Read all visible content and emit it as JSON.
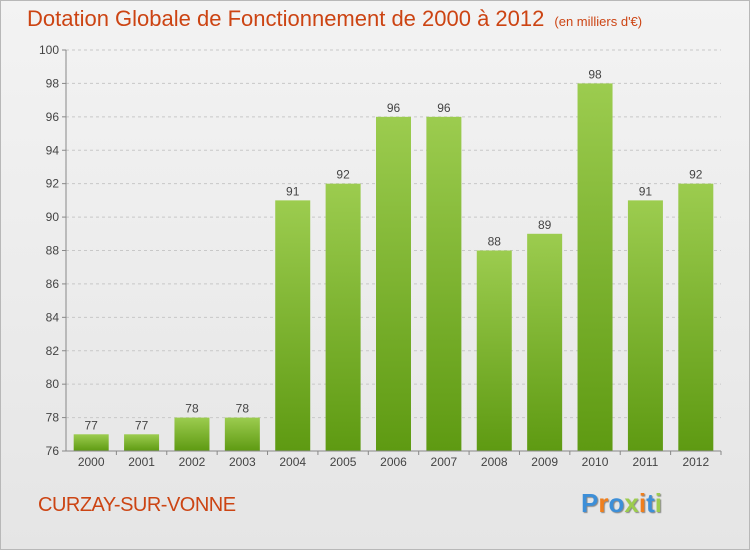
{
  "header": {
    "title": "Dotation Globale de Fonctionnement de 2000 à 2012",
    "unit": "(en milliers d'€)"
  },
  "footer": {
    "commune": "CURZAY-SUR-VONNE",
    "logo": "Proxiti"
  },
  "colors": {
    "title": "#cc4413",
    "bar_top": "#9ccc4f",
    "bar_bottom": "#5e9a12",
    "logo": [
      "#3d8fd8",
      "#f07f1d",
      "#3d8fd8",
      "#9ccc4f",
      "#f07f1d",
      "#3d8fd8",
      "#9ccc4f"
    ]
  },
  "chart_data": {
    "type": "bar",
    "title": "Dotation Globale de Fonctionnement de 2000 à 2012",
    "subtitle": "(en milliers d'€)",
    "categories": [
      "2000",
      "2001",
      "2002",
      "2003",
      "2004",
      "2005",
      "2006",
      "2007",
      "2008",
      "2009",
      "2010",
      "2011",
      "2012"
    ],
    "values": [
      77,
      77,
      78,
      78,
      91,
      92,
      96,
      96,
      88,
      89,
      98,
      91,
      92
    ],
    "ylim": [
      76,
      100
    ],
    "yticks": [
      76,
      78,
      80,
      82,
      84,
      86,
      88,
      90,
      92,
      94,
      96,
      98,
      100
    ],
    "grid": "horizontal dashed",
    "legend": "none",
    "data_labels": true
  }
}
